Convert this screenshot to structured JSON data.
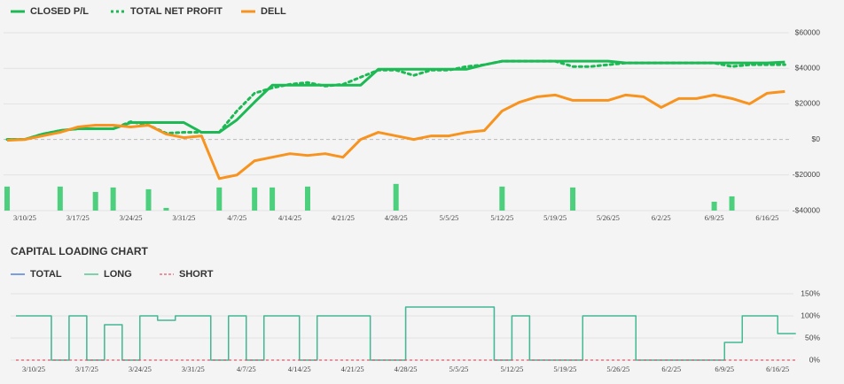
{
  "chart_data": [
    {
      "type": "line",
      "categories": [
        null,
        "3/10/25",
        null,
        null,
        "3/17/25",
        null,
        null,
        "3/24/25",
        null,
        null,
        "3/31/25",
        null,
        null,
        "4/7/25",
        null,
        null,
        "4/14/25",
        null,
        null,
        "4/21/25",
        null,
        null,
        "4/28/25",
        null,
        null,
        "5/5/25",
        null,
        null,
        "5/12/25",
        null,
        null,
        "5/19/25",
        null,
        null,
        "5/26/25",
        null,
        null,
        "6/2/25",
        null,
        null,
        "6/9/25",
        null,
        null,
        "6/16/25",
        null
      ],
      "series": [
        {
          "name": "CLOSED P/L",
          "color": "#1cb954",
          "style": "solid",
          "values": [
            0,
            0,
            3000,
            5000,
            6000,
            6000,
            6000,
            9500,
            9500,
            9500,
            9500,
            4000,
            4000,
            11000,
            21000,
            30500,
            30500,
            30500,
            30500,
            30500,
            30500,
            39500,
            39500,
            39500,
            39500,
            39500,
            39500,
            42000,
            44000,
            44000,
            44000,
            44000,
            44000,
            44000,
            44000,
            43000,
            43000,
            43000,
            43000,
            43000,
            43000,
            43000,
            43000,
            43000,
            43500
          ]
        },
        {
          "name": "TOTAL NET PROFIT",
          "color": "#1cb954",
          "style": "dotted",
          "values": [
            0,
            0,
            3000,
            5000,
            6000,
            6000,
            6000,
            10000,
            8000,
            3500,
            4000,
            4000,
            4000,
            16000,
            26000,
            29000,
            31000,
            32000,
            30000,
            31000,
            35000,
            39000,
            39000,
            36000,
            39000,
            39000,
            41000,
            42000,
            44000,
            44000,
            44000,
            44000,
            41000,
            41000,
            42000,
            43000,
            43000,
            43000,
            43000,
            43000,
            43000,
            41000,
            42000,
            42000,
            42000
          ]
        },
        {
          "name": "DELL",
          "color": "#f7931e",
          "style": "solid",
          "values": [
            -500,
            0,
            2000,
            4000,
            7000,
            8000,
            8000,
            7000,
            8000,
            3000,
            1000,
            2000,
            -22000,
            -20000,
            -12000,
            -10000,
            -8000,
            -9000,
            -8000,
            -10000,
            0,
            4000,
            2000,
            0,
            2000,
            2000,
            4000,
            5000,
            16000,
            21000,
            24000,
            25000,
            22000,
            22000,
            22000,
            25000,
            24000,
            18000,
            23000,
            23000,
            25000,
            23000,
            20000,
            26000,
            27000
          ]
        },
        {
          "type": "bar",
          "color": "#4cd07d",
          "values": [
            -26500,
            null,
            null,
            -26500,
            null,
            -29500,
            -27000,
            null,
            -28000,
            -38500,
            null,
            null,
            -27000,
            null,
            -27000,
            -27000,
            null,
            -26500,
            null,
            null,
            null,
            null,
            -25000,
            null,
            null,
            null,
            null,
            null,
            -26500,
            null,
            null,
            null,
            -27000,
            null,
            null,
            null,
            null,
            null,
            null,
            null,
            -35000,
            -32000,
            null,
            null,
            null
          ]
        }
      ],
      "ylim": [
        -40000,
        60000
      ],
      "yticks": [
        {
          "value": -40000,
          "label": "-$40000"
        },
        {
          "value": -20000,
          "label": "-$20000"
        },
        {
          "value": 0,
          "label": "$0"
        },
        {
          "value": 20000,
          "label": "$20000"
        },
        {
          "value": 40000,
          "label": "$40000"
        },
        {
          "value": 60000,
          "label": "$60000"
        }
      ],
      "grid": true
    },
    {
      "type": "step",
      "title": "CAPITAL LOADING CHART",
      "categories": [
        null,
        "3/10/25",
        null,
        null,
        "3/17/25",
        null,
        null,
        "3/24/25",
        null,
        null,
        "3/31/25",
        null,
        null,
        "4/7/25",
        null,
        null,
        "4/14/25",
        null,
        null,
        "4/21/25",
        null,
        null,
        "4/28/25",
        null,
        null,
        "5/5/25",
        null,
        null,
        "5/12/25",
        null,
        null,
        "5/19/25",
        null,
        null,
        "5/26/25",
        null,
        null,
        "6/2/25",
        null,
        null,
        "6/9/25",
        null,
        null,
        "6/16/25",
        null
      ],
      "series": [
        {
          "name": "TOTAL",
          "color": "#3a6fd8",
          "style": "solid",
          "values": [
            100,
            100,
            0,
            100,
            0,
            80,
            0,
            100,
            90,
            100,
            100,
            0,
            100,
            0,
            100,
            100,
            0,
            100,
            100,
            100,
            0,
            0,
            120,
            120,
            120,
            120,
            120,
            0,
            100,
            0,
            0,
            0,
            100,
            100,
            100,
            0,
            0,
            0,
            0,
            0,
            40,
            100,
            100,
            60,
            60
          ]
        },
        {
          "name": "LONG",
          "color": "#3cbf87",
          "style": "solid",
          "values": [
            100,
            100,
            0,
            100,
            0,
            80,
            0,
            100,
            90,
            100,
            100,
            0,
            100,
            0,
            100,
            100,
            0,
            100,
            100,
            100,
            0,
            0,
            120,
            120,
            120,
            120,
            120,
            0,
            100,
            0,
            0,
            0,
            100,
            100,
            100,
            0,
            0,
            0,
            0,
            0,
            40,
            100,
            100,
            60,
            60
          ]
        },
        {
          "name": "SHORT",
          "color": "#e05a6a",
          "style": "dashed",
          "values": [
            0,
            0,
            0,
            0,
            0,
            0,
            0,
            0,
            0,
            0,
            0,
            0,
            0,
            0,
            0,
            0,
            0,
            0,
            0,
            0,
            0,
            0,
            0,
            0,
            0,
            0,
            0,
            0,
            0,
            0,
            0,
            0,
            0,
            0,
            0,
            0,
            0,
            0,
            0,
            0,
            0,
            0,
            0,
            0,
            0
          ]
        }
      ],
      "ylim": [
        0,
        150
      ],
      "yticks": [
        {
          "value": 0,
          "label": "0%"
        },
        {
          "value": 50,
          "label": "50%"
        },
        {
          "value": 100,
          "label": "100%"
        },
        {
          "value": 150,
          "label": "150%"
        }
      ],
      "grid": true
    }
  ]
}
